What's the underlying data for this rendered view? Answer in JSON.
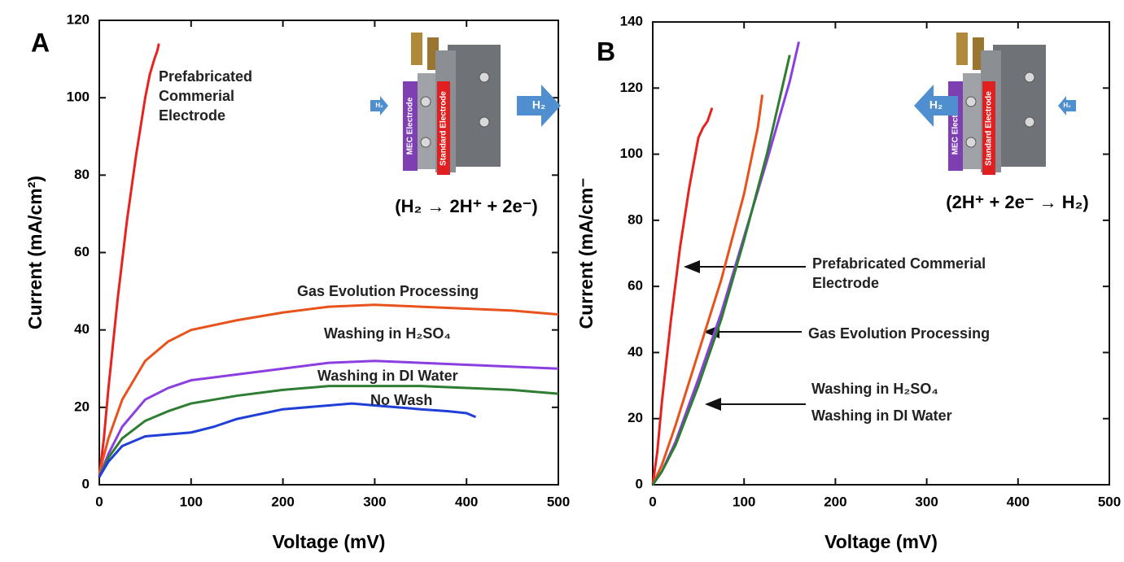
{
  "chart_data": [
    {
      "type": "line",
      "panel_label": "A",
      "xlabel": "Voltage (mV)",
      "ylabel": "Current (mA/cm²)",
      "equation": "(H₂ → 2H⁺ + 2e⁻)",
      "device_labels": [
        "MEC Electrode",
        "Standard Electrode"
      ],
      "gas_label": "H₂",
      "xlim": [
        0,
        500
      ],
      "ylim": [
        0,
        120
      ],
      "xticks": [
        0,
        100,
        200,
        300,
        400,
        500
      ],
      "yticks": [
        0,
        20,
        40,
        60,
        80,
        100,
        120
      ],
      "series": [
        {
          "name": "Prefabricated Commerial Electrode",
          "color": "#e8231f",
          "x": [
            0,
            5,
            10,
            20,
            30,
            40,
            50,
            55,
            60,
            63,
            65
          ],
          "values": [
            2,
            12,
            25,
            48,
            68,
            85,
            100,
            106,
            110,
            112,
            114
          ]
        },
        {
          "name": "Gas Evolution Processing",
          "color": "#e8521c",
          "x": [
            0,
            10,
            25,
            50,
            75,
            100,
            150,
            200,
            250,
            300,
            350,
            400,
            450,
            500
          ],
          "values": [
            3,
            12,
            22,
            32,
            37,
            40,
            42.5,
            44.5,
            46,
            46.5,
            46,
            45.5,
            45,
            44
          ]
        },
        {
          "name": "Washing in H₂SO₄",
          "color": "#8b3fe0",
          "x": [
            0,
            10,
            25,
            50,
            75,
            100,
            150,
            200,
            250,
            300,
            350,
            400,
            450,
            500
          ],
          "values": [
            2,
            8,
            15,
            22,
            25,
            27,
            28.5,
            30,
            31.5,
            32,
            31.5,
            31,
            30.5,
            30
          ]
        },
        {
          "name": "Washing in DI Water",
          "color": "#2e7d32",
          "x": [
            0,
            10,
            25,
            50,
            75,
            100,
            150,
            200,
            250,
            300,
            350,
            400,
            450,
            500
          ],
          "values": [
            2,
            7,
            12,
            16.5,
            19,
            21,
            23,
            24.5,
            25.5,
            25.5,
            25.5,
            25,
            24.5,
            23.5
          ]
        },
        {
          "name": "No Wash",
          "color": "#1f3fd6",
          "x": [
            0,
            10,
            25,
            50,
            75,
            100,
            125,
            150,
            200,
            250,
            275,
            300,
            350,
            380,
            400,
            410
          ],
          "values": [
            2,
            6,
            10,
            12.5,
            13,
            13.5,
            15,
            17,
            19.5,
            20.5,
            21,
            20.5,
            19.5,
            19,
            18.5,
            17.5
          ]
        }
      ]
    },
    {
      "type": "line",
      "panel_label": "B",
      "xlabel": "Voltage (mV)",
      "ylabel": "Current (mA/cm⁻",
      "equation": "(2H⁺ + 2e⁻ → H₂)",
      "device_labels": [
        "MEC Electrode",
        "Standard Electrode"
      ],
      "gas_label": "H₂",
      "xlim": [
        0,
        500
      ],
      "ylim": [
        0,
        140
      ],
      "xticks": [
        0,
        100,
        200,
        300,
        400,
        500
      ],
      "yticks": [
        0,
        20,
        40,
        60,
        80,
        100,
        120,
        140
      ],
      "series": [
        {
          "name": "Prefabricated Commerial Electrode",
          "color": "#e8231f",
          "x": [
            0,
            5,
            10,
            20,
            30,
            40,
            50,
            55,
            60,
            65
          ],
          "values": [
            0,
            10,
            25,
            50,
            72,
            90,
            105,
            108,
            110,
            114
          ]
        },
        {
          "name": "Gas Evolution Processing",
          "color": "#e8521c",
          "x": [
            0,
            10,
            25,
            50,
            75,
            100,
            115,
            120
          ],
          "values": [
            0,
            6,
            18,
            40,
            62,
            88,
            108,
            118
          ]
        },
        {
          "name": "Washing in H₂SO₄",
          "color": "#8b3fe0",
          "x": [
            0,
            10,
            25,
            50,
            75,
            100,
            125,
            150,
            160
          ],
          "values": [
            0,
            4,
            13,
            32,
            52,
            75,
            98,
            122,
            134
          ]
        },
        {
          "name": "Washing in DI Water",
          "color": "#2e7d32",
          "x": [
            0,
            10,
            25,
            50,
            75,
            100,
            125,
            150
          ],
          "values": [
            0,
            4,
            12,
            30,
            50,
            74,
            100,
            130
          ]
        }
      ]
    }
  ]
}
